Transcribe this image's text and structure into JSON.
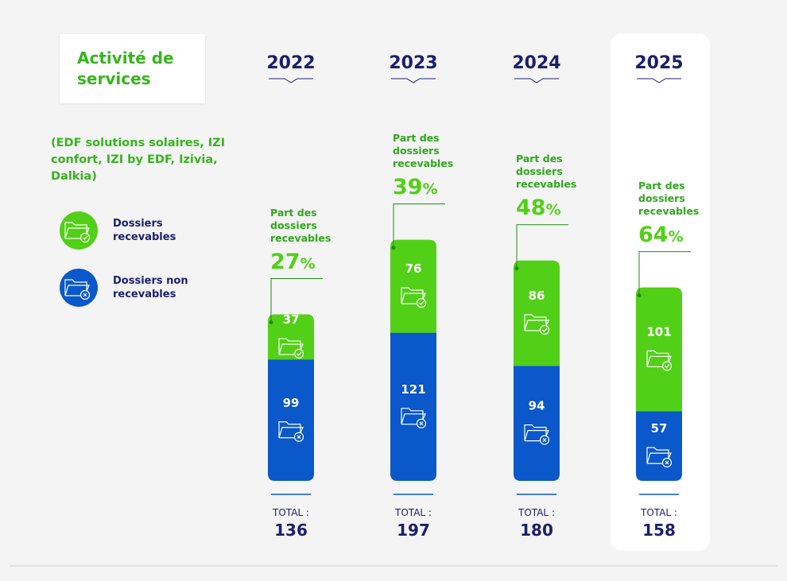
{
  "chart_data": {
    "type": "stacked-bar",
    "title": "Activité de services",
    "subtitle": "(EDF solutions solaires, IZI confort, IZI by EDF, Izivia, Dalkia)",
    "categories": [
      "2022",
      "2023",
      "2024",
      "2025"
    ],
    "series": [
      {
        "name": "Dossiers non recevables",
        "color": "#0a58ca",
        "values": [
          99,
          121,
          94,
          57
        ]
      },
      {
        "name": "Dossiers recevables",
        "color": "#52d017",
        "values": [
          37,
          76,
          86,
          101
        ]
      }
    ],
    "share_label": "Part des dossiers recevables",
    "share_values": [
      27,
      39,
      48,
      64
    ],
    "share_unit": "%",
    "total_label": "TOTAL :",
    "totals": [
      136,
      197,
      180,
      158
    ]
  }
}
